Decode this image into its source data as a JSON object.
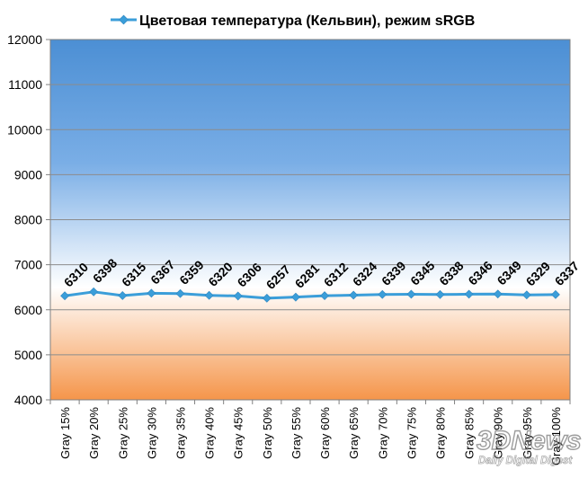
{
  "chart_data": {
    "type": "line",
    "title": "Цветовая температура (Кельвин), режим sRGB",
    "categories": [
      "Gray 15%",
      "Gray 20%",
      "Gray 25%",
      "Gray 30%",
      "Gray 35%",
      "Gray 40%",
      "Gray 45%",
      "Gray 50%",
      "Gray 55%",
      "Gray 60%",
      "Gray 65%",
      "Gray 70%",
      "Gray 75%",
      "Gray 80%",
      "Gray 85%",
      "Gray 90%",
      "Gray 95%",
      "Gray 100%"
    ],
    "series": [
      {
        "name": "Цветовая температура (Кельвин), режим sRGB",
        "values": [
          6310,
          6398,
          6315,
          6367,
          6359,
          6320,
          6306,
          6257,
          6281,
          6312,
          6324,
          6339,
          6345,
          6338,
          6346,
          6349,
          6329,
          6337
        ],
        "color": "#3b9ed9",
        "marker": "diamond"
      }
    ],
    "ylim": [
      4000,
      12000
    ],
    "yticks": [
      4000,
      5000,
      6000,
      7000,
      8000,
      9000,
      10000,
      11000,
      12000
    ],
    "xlabel": "",
    "ylabel": "",
    "grid": true,
    "legend": "top",
    "data_labels": true,
    "background": {
      "top_color": "#4c8fd4",
      "bottom_color": "#f5954a",
      "neutral_value": 6500
    }
  },
  "watermark": {
    "logo_text": "3DNews",
    "tagline": "Daily Digital Digest"
  }
}
